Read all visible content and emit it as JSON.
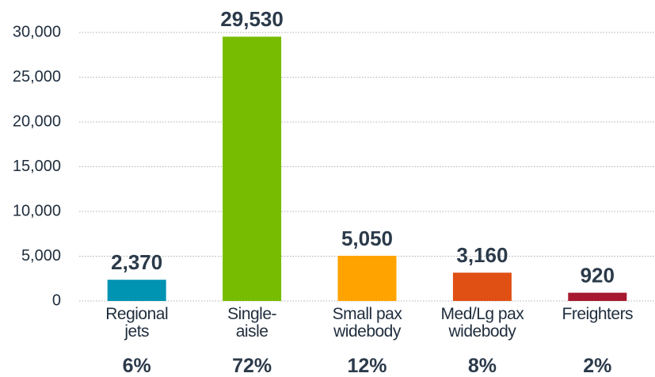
{
  "chart_data": {
    "type": "bar",
    "categories": [
      "Regional\njets",
      "Single-\naisle",
      "Small pax\nwidebody",
      "Med/Lg pax\nwidebody",
      "Freighters"
    ],
    "values": [
      2370,
      29530,
      5050,
      3160,
      920
    ],
    "value_labels": [
      "2,370",
      "29,530",
      "5,050",
      "3,160",
      "920"
    ],
    "share_labels": [
      "6%",
      "72%",
      "12%",
      "8%",
      "2%"
    ],
    "colors": [
      "#0093b2",
      "#77bc00",
      "#ffa300",
      "#e04f14",
      "#a6192e"
    ],
    "ylim": [
      0,
      30000
    ],
    "yticks": [
      0,
      {
        "value": 5000,
        "label": "5,000"
      },
      {
        "value": 10000,
        "label": "10,000"
      },
      {
        "value": 15000,
        "label": "15,000"
      },
      {
        "value": 20000,
        "label": "20,000"
      },
      {
        "value": 25000,
        "label": "25,000"
      },
      {
        "value": 30000,
        "label": "30,000"
      }
    ],
    "grid": true
  }
}
